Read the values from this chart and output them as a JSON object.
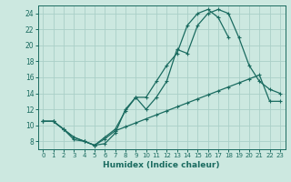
{
  "title": "",
  "xlabel": "Humidex (Indice chaleur)",
  "bg_color": "#cce8e0",
  "grid_color": "#aacfc8",
  "line_color": "#1a6b60",
  "xlim": [
    -0.5,
    23.5
  ],
  "ylim": [
    7,
    25
  ],
  "xticks": [
    0,
    1,
    2,
    3,
    4,
    5,
    6,
    7,
    8,
    9,
    10,
    11,
    12,
    13,
    14,
    15,
    16,
    17,
    18,
    19,
    20,
    21,
    22,
    23
  ],
  "yticks": [
    8,
    10,
    12,
    14,
    16,
    18,
    20,
    22,
    24
  ],
  "curve1_x": [
    0,
    1,
    2,
    3,
    4,
    5,
    6,
    7,
    8,
    9,
    10,
    11,
    12,
    13,
    14,
    15,
    16,
    17,
    18
  ],
  "curve1_y": [
    10.5,
    10.5,
    9.5,
    8.5,
    8.0,
    7.5,
    8.5,
    9.5,
    11.8,
    13.5,
    13.5,
    15.5,
    17.5,
    19.0,
    22.5,
    24.0,
    24.5,
    23.5,
    21.0
  ],
  "curve2_x": [
    0,
    1,
    2,
    3,
    4,
    5,
    6,
    7,
    8,
    9,
    10,
    11,
    12,
    13,
    14,
    15,
    16,
    17,
    18,
    19,
    20,
    21,
    22,
    23
  ],
  "curve2_y": [
    10.5,
    10.5,
    9.5,
    8.5,
    8.0,
    7.5,
    8.3,
    9.3,
    9.8,
    10.3,
    10.8,
    11.3,
    11.8,
    12.3,
    12.8,
    13.3,
    13.8,
    14.3,
    14.8,
    15.3,
    15.8,
    16.3,
    13.0,
    13.0
  ],
  "curve3_x": [
    0,
    1,
    2,
    3,
    4,
    5,
    6,
    7,
    8,
    9,
    10,
    11,
    12,
    13,
    14,
    15,
    16,
    17,
    18,
    19,
    20,
    21,
    22,
    23
  ],
  "curve3_y": [
    10.5,
    10.5,
    9.5,
    8.2,
    8.0,
    7.5,
    7.7,
    9.0,
    12.0,
    13.5,
    12.0,
    13.5,
    15.5,
    19.5,
    19.0,
    22.5,
    24.0,
    24.5,
    24.0,
    21.0,
    17.5,
    15.5,
    14.5,
    14.0
  ]
}
